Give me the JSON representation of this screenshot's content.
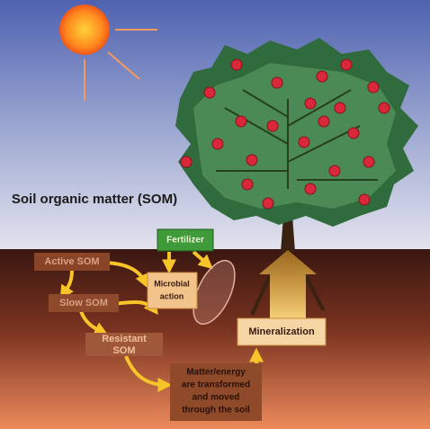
{
  "title": "Soil organic matter (SOM)",
  "nodes": [
    {
      "lines": [
        "Fertilizer"
      ]
    },
    {
      "lines": [
        "Active SOM"
      ]
    },
    {
      "lines": [
        "Microbial",
        "action"
      ]
    },
    {
      "lines": [
        "Slow SOM"
      ]
    },
    {
      "lines": [
        "Resistant",
        "SOM"
      ]
    },
    {
      "lines": [
        "Mineralization"
      ]
    },
    {
      "lines": [
        "Matter/energy",
        "are transformed",
        "and moved",
        "through the soil"
      ]
    }
  ]
}
